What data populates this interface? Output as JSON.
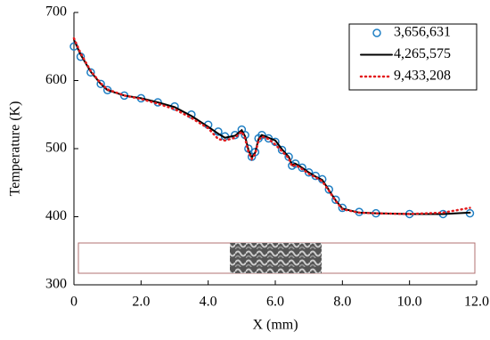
{
  "chart_data": {
    "type": "line",
    "xlabel": "X (mm)",
    "ylabel": "Temperature (K)",
    "x": [
      0,
      0.2,
      0.5,
      0.8,
      1.0,
      1.5,
      2.0,
      2.5,
      3.0,
      3.5,
      4.0,
      4.3,
      4.5,
      4.8,
      5.0,
      5.1,
      5.2,
      5.3,
      5.4,
      5.5,
      5.6,
      5.8,
      6.0,
      6.2,
      6.4,
      6.5,
      6.6,
      6.8,
      7.0,
      7.2,
      7.4,
      7.6,
      7.8,
      8.0,
      8.5,
      9.0,
      10.0,
      11.0,
      11.8
    ],
    "series": [
      {
        "name": "3,656,631",
        "color": "#1f7fc4",
        "marker": "circle",
        "values": [
          650,
          635,
          612,
          595,
          586,
          578,
          574,
          568,
          562,
          550,
          535,
          525,
          518,
          520,
          528,
          520,
          500,
          488,
          495,
          515,
          520,
          515,
          510,
          498,
          488,
          475,
          478,
          472,
          465,
          460,
          455,
          440,
          425,
          413,
          407,
          405,
          404,
          404,
          405
        ]
      },
      {
        "name": "4,265,575",
        "color": "#000000",
        "dash": "solid",
        "values": [
          660,
          638,
          613,
          595,
          586,
          578,
          574,
          568,
          561,
          548,
          532,
          522,
          516,
          519,
          527,
          518,
          498,
          487,
          494,
          514,
          520,
          516,
          512,
          499,
          488,
          476,
          478,
          472,
          465,
          459,
          454,
          439,
          424,
          412,
          406,
          405,
          404,
          404,
          406
        ]
      },
      {
        "name": "9,433,208",
        "color": "#e31a1c",
        "dash": "dotted",
        "values": [
          662,
          640,
          614,
          596,
          587,
          578,
          573,
          566,
          558,
          545,
          530,
          514,
          512,
          516,
          525,
          515,
          495,
          485,
          492,
          512,
          518,
          514,
          506,
          496,
          486,
          474,
          476,
          470,
          463,
          458,
          452,
          438,
          423,
          411,
          406,
          405,
          404,
          406,
          413
        ]
      }
    ],
    "xlim": [
      0,
      12
    ],
    "ylim": [
      300,
      700
    ],
    "xticks": [
      0,
      {
        "value": 2,
        "label": "2.0"
      },
      {
        "value": 4,
        "label": "4.0"
      },
      {
        "value": 6,
        "label": "6.0"
      },
      {
        "value": 8,
        "label": "8.0"
      },
      {
        "value": 10,
        "label": "10.0"
      },
      {
        "value": 12,
        "label": "12.0"
      }
    ],
    "yticks": [
      300,
      400,
      500,
      600,
      700
    ],
    "legend": "upper-right"
  }
}
